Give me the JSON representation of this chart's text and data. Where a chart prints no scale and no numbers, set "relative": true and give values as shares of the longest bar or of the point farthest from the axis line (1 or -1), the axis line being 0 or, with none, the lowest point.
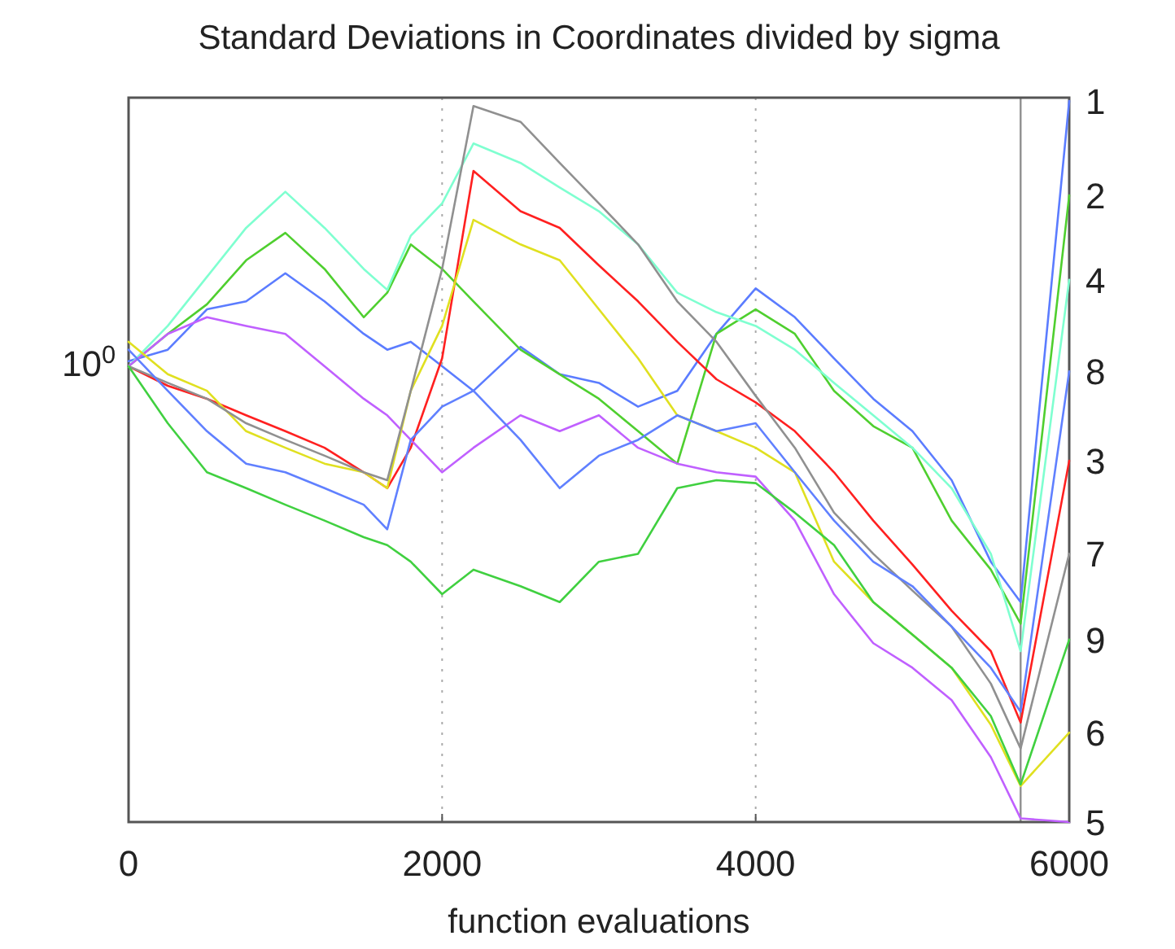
{
  "chart_data": {
    "type": "line",
    "title": "Standard Deviations in Coordinates divided by sigma",
    "xlabel": "function evaluations",
    "relative": true,
    "grid": "x",
    "xlim": [
      0,
      6000
    ],
    "xticks": [
      0,
      2000,
      4000,
      6000
    ],
    "annotations": [
      "10$^{0}$"
    ],
    "ref_lines": [
      {
        "axis": "x",
        "value": 5690,
        "label": null,
        "color": "#909090"
      }
    ],
    "x": [
      0,
      250,
      500,
      750,
      1000,
      1250,
      1500,
      1650,
      1800,
      2000,
      2200,
      2500,
      2750,
      3000,
      3250,
      3500,
      3750,
      4000,
      4250,
      4500,
      4750,
      5000,
      5250,
      5500,
      5690,
      6000
    ],
    "series": [
      {
        "name": "1",
        "color": "#5b7cff",
        "values": [
          0.639,
          0.655,
          0.711,
          0.722,
          0.761,
          0.722,
          0.677,
          0.655,
          0.666,
          0.632,
          0.598,
          0.659,
          0.621,
          0.609,
          0.576,
          0.598,
          0.677,
          0.74,
          0.7,
          0.643,
          0.587,
          0.542,
          0.474,
          0.361,
          0.305,
          1
        ]
      },
      {
        "name": "2",
        "color": "#4fcf2f",
        "values": [
          0.632,
          0.677,
          0.718,
          0.779,
          0.817,
          0.767,
          0.7,
          0.734,
          0.801,
          0.767,
          0.722,
          0.655,
          0.621,
          0.587,
          0.542,
          0.497,
          0.677,
          0.711,
          0.677,
          0.598,
          0.549,
          0.519,
          0.418,
          0.35,
          0.275,
          0.869
        ]
      },
      {
        "name": "3",
        "color": "#ff2020",
        "values": [
          0.632,
          0.605,
          0.587,
          0.564,
          0.542,
          0.519,
          0.485,
          0.463,
          0.519,
          0.643,
          0.903,
          0.847,
          0.824,
          0.772,
          0.722,
          0.666,
          0.614,
          0.582,
          0.542,
          0.485,
          0.418,
          0.357,
          0.293,
          0.237,
          0.138,
          0.501
        ]
      },
      {
        "name": "4",
        "color": "#7fffd0",
        "values": [
          0.632,
          0.688,
          0.756,
          0.824,
          0.874,
          0.824,
          0.767,
          0.738,
          0.813,
          0.858,
          0.941,
          0.914,
          0.88,
          0.847,
          0.801,
          0.734,
          0.707,
          0.688,
          0.655,
          0.609,
          0.564,
          0.519,
          0.463,
          0.372,
          0.237,
          0.752
        ]
      },
      {
        "name": "5",
        "color": "#c060ff",
        "values": [
          0.632,
          0.677,
          0.7,
          0.688,
          0.677,
          0.632,
          0.587,
          0.564,
          0.53,
          0.485,
          0.519,
          0.564,
          0.542,
          0.564,
          0.519,
          0.497,
          0.485,
          0.479,
          0.418,
          0.316,
          0.248,
          0.214,
          0.169,
          0.09,
          0.005,
          0
        ]
      },
      {
        "name": "6",
        "color": "#e0e020",
        "values": [
          0.666,
          0.621,
          0.598,
          0.542,
          0.519,
          0.497,
          0.485,
          0.463,
          0.598,
          0.688,
          0.835,
          0.801,
          0.779,
          0.711,
          0.643,
          0.564,
          0.542,
          0.519,
          0.485,
          0.361,
          0.305,
          0.26,
          0.214,
          0.135,
          0.05,
          0.124
        ]
      },
      {
        "name": "7",
        "color": "#909090",
        "values": [
          0.632,
          0.609,
          0.587,
          0.553,
          0.53,
          0.508,
          0.485,
          0.474,
          0.598,
          0.767,
          0.993,
          0.971,
          0.914,
          0.858,
          0.801,
          0.722,
          0.666,
          0.591,
          0.519,
          0.429,
          0.372,
          0.321,
          0.271,
          0.192,
          0.102,
          0.372
        ]
      },
      {
        "name": "8",
        "color": "#6080ff",
        "values": [
          0.655,
          0.598,
          0.542,
          0.497,
          0.485,
          0.463,
          0.44,
          0.406,
          0.53,
          0.576,
          0.598,
          0.53,
          0.463,
          0.508,
          0.53,
          0.564,
          0.542,
          0.553,
          0.485,
          0.418,
          0.361,
          0.327,
          0.271,
          0.214,
          0.153,
          0.625
        ]
      },
      {
        "name": "9",
        "color": "#40d040",
        "values": [
          0.632,
          0.553,
          0.485,
          0.463,
          0.44,
          0.418,
          0.395,
          0.384,
          0.361,
          0.316,
          0.35,
          0.327,
          0.305,
          0.361,
          0.372,
          0.463,
          0.474,
          0.47,
          0.429,
          0.384,
          0.305,
          0.26,
          0.214,
          0.147,
          0.052,
          0.253
        ]
      }
    ]
  }
}
